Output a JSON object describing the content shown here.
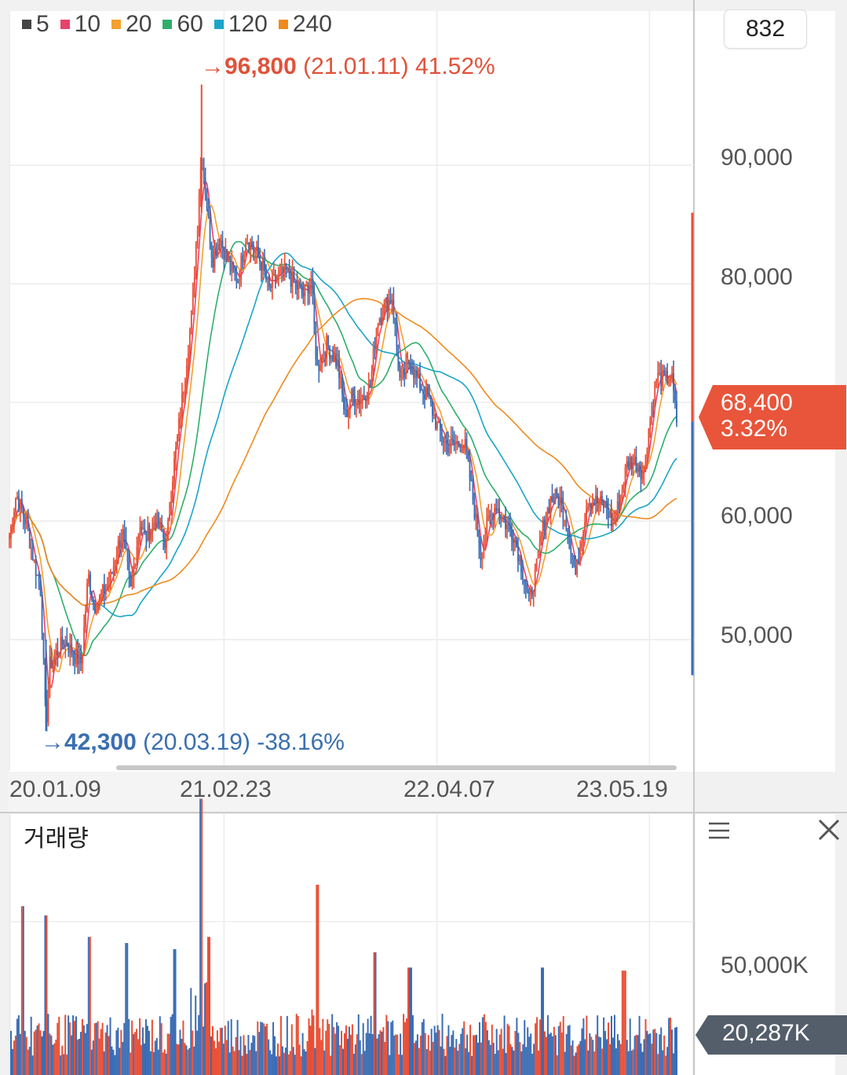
{
  "chart_data": [
    {
      "type": "candlestick",
      "legend": [
        {
          "label": "5",
          "color": "#444444"
        },
        {
          "label": "10",
          "color": "#e8436a"
        },
        {
          "label": "20",
          "color": "#f2a12e"
        },
        {
          "label": "60",
          "color": "#2eae6a"
        },
        {
          "label": "120",
          "color": "#1aa5c8"
        },
        {
          "label": "240",
          "color": "#f08a1d"
        }
      ],
      "x_tick_labels": [
        "20.01.09",
        "21.02.23",
        "22.04.07",
        "23.05.19"
      ],
      "y_tick_labels": [
        "90,000",
        "80,000",
        "60,000",
        "50,000"
      ],
      "y_ticks": [
        90000,
        80000,
        70000,
        60000,
        50000
      ],
      "ylim": [
        39000,
        103000
      ],
      "date_range": [
        "2020-01-09",
        "2023-07-10"
      ],
      "x_ticks": [
        "2020-01-09",
        "2021-02-23",
        "2022-04-07",
        "2023-05-19"
      ],
      "high_annotation": {
        "arrow": "→",
        "value": "96,800",
        "detail": "(21.01.11) 41.52%",
        "date": "2021-01-11",
        "price": 96800
      },
      "low_annotation": {
        "arrow": "→",
        "value": "42,300",
        "detail": "(20.03.19) -38.16%",
        "date": "2020-03-19",
        "price": 42300
      },
      "close_series": [
        [
          "2020-01-09",
          58600
        ],
        [
          "2020-01-22",
          62300
        ],
        [
          "2020-02-10",
          59800
        ],
        [
          "2020-02-24",
          56800
        ],
        [
          "2020-03-09",
          54200
        ],
        [
          "2020-03-19",
          42500
        ],
        [
          "2020-03-26",
          47800
        ],
        [
          "2020-04-10",
          49000
        ],
        [
          "2020-04-24",
          50000
        ],
        [
          "2020-05-08",
          48900
        ],
        [
          "2020-05-26",
          48000
        ],
        [
          "2020-06-08",
          55500
        ],
        [
          "2020-06-19",
          52800
        ],
        [
          "2020-07-02",
          53600
        ],
        [
          "2020-07-20",
          55000
        ],
        [
          "2020-08-03",
          57800
        ],
        [
          "2020-08-13",
          59000
        ],
        [
          "2020-08-28",
          54000
        ],
        [
          "2020-09-15",
          60000
        ],
        [
          "2020-09-25",
          58500
        ],
        [
          "2020-10-15",
          60200
        ],
        [
          "2020-11-05",
          58000
        ],
        [
          "2020-11-17",
          64000
        ],
        [
          "2020-11-26",
          67000
        ],
        [
          "2020-12-08",
          71500
        ],
        [
          "2020-12-24",
          77800
        ],
        [
          "2021-01-08",
          88800
        ],
        [
          "2021-01-11",
          91000
        ],
        [
          "2021-01-20",
          87200
        ],
        [
          "2021-02-01",
          82000
        ],
        [
          "2021-02-15",
          84000
        ],
        [
          "2021-03-04",
          81500
        ],
        [
          "2021-03-22",
          80300
        ],
        [
          "2021-04-06",
          84000
        ],
        [
          "2021-04-20",
          83000
        ],
        [
          "2021-05-06",
          81700
        ],
        [
          "2021-05-20",
          79500
        ],
        [
          "2021-06-04",
          80500
        ],
        [
          "2021-06-22",
          81000
        ],
        [
          "2021-07-08",
          80000
        ],
        [
          "2021-07-26",
          79000
        ],
        [
          "2021-08-09",
          80500
        ],
        [
          "2021-08-20",
          72700
        ],
        [
          "2021-09-06",
          75000
        ],
        [
          "2021-09-29",
          73200
        ],
        [
          "2021-10-13",
          68800
        ],
        [
          "2021-10-25",
          70500
        ],
        [
          "2021-11-08",
          70200
        ],
        [
          "2021-11-30",
          71300
        ],
        [
          "2021-12-13",
          76800
        ],
        [
          "2021-12-30",
          78300
        ],
        [
          "2022-01-11",
          78900
        ],
        [
          "2022-01-27",
          71300
        ],
        [
          "2022-02-14",
          73500
        ],
        [
          "2022-03-04",
          71500
        ],
        [
          "2022-03-22",
          70300
        ],
        [
          "2022-04-07",
          68000
        ],
        [
          "2022-04-26",
          66300
        ],
        [
          "2022-05-13",
          66500
        ],
        [
          "2022-05-30",
          66500
        ],
        [
          "2022-06-14",
          62100
        ],
        [
          "2022-06-30",
          57000
        ],
        [
          "2022-07-13",
          59800
        ],
        [
          "2022-07-29",
          61400
        ],
        [
          "2022-08-17",
          59700
        ],
        [
          "2022-08-31",
          59000
        ],
        [
          "2022-09-16",
          56200
        ],
        [
          "2022-09-30",
          53100
        ],
        [
          "2022-10-14",
          55800
        ],
        [
          "2022-10-27",
          59500
        ],
        [
          "2022-11-11",
          61900
        ],
        [
          "2022-11-25",
          62000
        ],
        [
          "2022-12-09",
          60300
        ],
        [
          "2022-12-29",
          55300
        ],
        [
          "2023-01-06",
          57900
        ],
        [
          "2023-01-20",
          61800
        ],
        [
          "2023-02-07",
          61600
        ],
        [
          "2023-02-24",
          61300
        ],
        [
          "2023-03-10",
          59500
        ],
        [
          "2023-03-24",
          62000
        ],
        [
          "2023-04-07",
          65000
        ],
        [
          "2023-04-21",
          65000
        ],
        [
          "2023-05-08",
          64000
        ],
        [
          "2023-05-19",
          68400
        ],
        [
          "2023-06-02",
          72200
        ],
        [
          "2023-06-16",
          71900
        ],
        [
          "2023-06-30",
          72200
        ],
        [
          "2023-07-10",
          68400
        ]
      ],
      "current_price": {
        "value": "68,400",
        "change": "3.32%",
        "price": 68400
      },
      "range_marker": {
        "from": 47000,
        "to": 86000
      }
    },
    {
      "type": "bar",
      "title": "거래량",
      "y_tick_labels": [
        "50,000K"
      ],
      "y_ticks": [
        50000
      ],
      "ylim": [
        0,
        85000
      ],
      "units": "K",
      "spikes": [
        [
          "2020-02-04",
          55000
        ],
        [
          "2020-03-19",
          52000
        ],
        [
          "2020-06-09",
          45000
        ],
        [
          "2020-08-20",
          43000
        ],
        [
          "2020-11-20",
          41000
        ],
        [
          "2021-01-11",
          90000
        ],
        [
          "2021-01-25",
          45000
        ],
        [
          "2021-08-20",
          62000
        ],
        [
          "2021-12-10",
          40000
        ],
        [
          "2022-02-14",
          35000
        ],
        [
          "2022-10-27",
          35000
        ],
        [
          "2023-03-31",
          34000
        ]
      ],
      "current": {
        "value": "20,287K",
        "volume": 20287
      }
    }
  ],
  "toolbar": {
    "count": "832"
  },
  "colors": {
    "up": "#e94e34",
    "down": "#3a6cb4",
    "price_tag": "#e8553a",
    "volume_tag": "#545e6b",
    "ma5": "#444444",
    "ma10": "#e8436a",
    "ma20": "#f2a12e",
    "ma60": "#2eae6a",
    "ma120": "#1aa5c8",
    "ma240": "#f08a1d"
  },
  "icons": {
    "menu": "hamburger-menu-icon",
    "close": "close-icon"
  }
}
